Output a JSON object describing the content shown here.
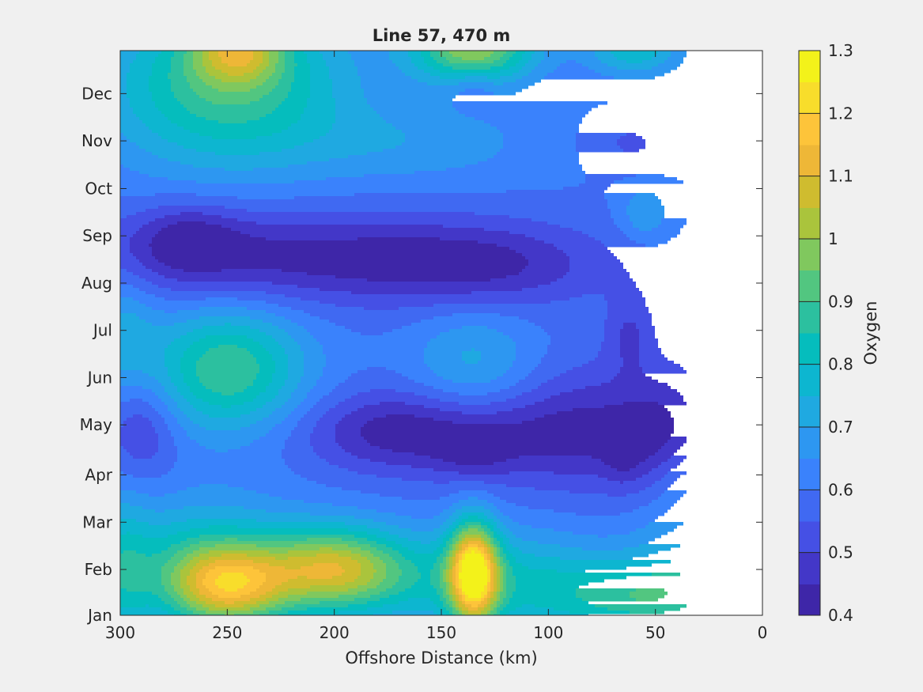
{
  "chart_data": {
    "type": "heatmap",
    "subtype": "filled-contour",
    "title": "Line 57, 470 m",
    "xlabel": "Offshore Distance (km)",
    "ylabel": "",
    "x_reversed": true,
    "xlim": [
      0,
      300
    ],
    "xticks": [
      300,
      250,
      200,
      150,
      100,
      50,
      0
    ],
    "ylim": [
      0,
      11.95
    ],
    "yticks": [
      {
        "value": 0,
        "label": "Jan"
      },
      {
        "value": 0.97,
        "label": "Feb"
      },
      {
        "value": 1.97,
        "label": "Mar"
      },
      {
        "value": 2.97,
        "label": "Apr"
      },
      {
        "value": 4.03,
        "label": "May"
      },
      {
        "value": 5.03,
        "label": "Jun"
      },
      {
        "value": 6.03,
        "label": "Jul"
      },
      {
        "value": 7.03,
        "label": "Aug"
      },
      {
        "value": 8.03,
        "label": "Sep"
      },
      {
        "value": 9.03,
        "label": "Oct"
      },
      {
        "value": 10.04,
        "label": "Nov"
      },
      {
        "value": 11.04,
        "label": "Dec"
      }
    ],
    "data_extent_x": [
      35,
      300
    ],
    "colorbar": {
      "label": "Oxygen",
      "min": 0.4,
      "max": 1.3,
      "levels": [
        0.4,
        0.45,
        0.5,
        0.55,
        0.6,
        0.65,
        0.7,
        0.75,
        0.8,
        0.85,
        0.9,
        0.95,
        1.0,
        1.05,
        1.1,
        1.15,
        1.2,
        1.25,
        1.3
      ],
      "ticks": [
        {
          "value": 0.4,
          "label": "0.4"
        },
        {
          "value": 0.5,
          "label": "0.5"
        },
        {
          "value": 0.6,
          "label": "0.6"
        },
        {
          "value": 0.7,
          "label": "0.7"
        },
        {
          "value": 0.8,
          "label": "0.8"
        },
        {
          "value": 0.9,
          "label": "0.9"
        },
        {
          "value": 1.0,
          "label": "1"
        },
        {
          "value": 1.1,
          "label": "1.1"
        },
        {
          "value": 1.2,
          "label": "1.2"
        },
        {
          "value": 1.3,
          "label": "1.3"
        }
      ],
      "colors": [
        "#3e26a8",
        "#4337c8",
        "#4550e5",
        "#4069f2",
        "#3a82fc",
        "#2d97f1",
        "#1fa9e1",
        "#0db6d0",
        "#05bdbd",
        "#2cc09f",
        "#52c680",
        "#80c85e",
        "#aac43c",
        "#cfbc2f",
        "#eeb737",
        "#fdc43a",
        "#f8dd2b",
        "#f3f21a"
      ]
    },
    "field_model": {
      "base": 0.6,
      "features": [
        {
          "x": 250,
          "y": 0.6,
          "sx": 20,
          "sy": 0.6,
          "a": 0.42
        },
        {
          "x": 262,
          "y": 1.2,
          "sx": 32,
          "sy": 0.9,
          "a": 0.2
        },
        {
          "x": 200,
          "y": 1.0,
          "sx": 22,
          "sy": 0.6,
          "a": 0.35
        },
        {
          "x": 172,
          "y": 0.8,
          "sx": 42,
          "sy": 0.7,
          "a": 0.15
        },
        {
          "x": 135,
          "y": 0.9,
          "sx": 8,
          "sy": 0.75,
          "a": 0.6
        },
        {
          "x": 110,
          "y": 0.6,
          "sx": 30,
          "sy": 0.8,
          "a": 0.15
        },
        {
          "x": 60,
          "y": 0.4,
          "sx": 25,
          "sy": 0.55,
          "a": 0.22
        },
        {
          "x": 30,
          "y": 1.0,
          "sx": 20,
          "sy": 1.2,
          "a": 0.15
        },
        {
          "x": 300,
          "y": 0.8,
          "sx": 10,
          "sy": 1.2,
          "a": 0.15
        },
        {
          "x": 250,
          "y": 5.2,
          "sx": 25,
          "sy": 0.9,
          "a": 0.3
        },
        {
          "x": 135,
          "y": 5.3,
          "sx": 20,
          "sy": 0.8,
          "a": 0.12
        },
        {
          "x": 300,
          "y": 6.0,
          "sx": 12,
          "sy": 1.0,
          "a": 0.12
        },
        {
          "x": 250,
          "y": 11.2,
          "sx": 40,
          "sy": 1.2,
          "a": 0.3
        },
        {
          "x": 245,
          "y": 12.0,
          "sx": 15,
          "sy": 0.5,
          "a": 0.3
        },
        {
          "x": 135,
          "y": 12.0,
          "sx": 20,
          "sy": 0.5,
          "a": 0.4
        },
        {
          "x": 60,
          "y": 12.0,
          "sx": 15,
          "sy": 0.4,
          "a": 0.2
        },
        {
          "x": 160,
          "y": 10.0,
          "sx": 40,
          "sy": 0.6,
          "a": 0.08
        },
        {
          "x": 55,
          "y": 8.5,
          "sx": 8,
          "sy": 0.4,
          "a": 0.1
        },
        {
          "x": 135,
          "y": 11.2,
          "sx": 7,
          "sy": 0.3,
          "a": -0.06
        },
        {
          "x": 62,
          "y": 10.0,
          "sx": 15,
          "sy": 0.4,
          "a": -0.06
        },
        {
          "x": 230,
          "y": 7.6,
          "sx": 70,
          "sy": 0.7,
          "a": -0.17
        },
        {
          "x": 268,
          "y": 8.0,
          "sx": 16,
          "sy": 0.5,
          "a": -0.1
        },
        {
          "x": 130,
          "y": 7.4,
          "sx": 40,
          "sy": 0.6,
          "a": -0.13
        },
        {
          "x": 175,
          "y": 3.9,
          "sx": 30,
          "sy": 0.6,
          "a": -0.15
        },
        {
          "x": 120,
          "y": 3.8,
          "sx": 35,
          "sy": 0.7,
          "a": -0.12
        },
        {
          "x": 135,
          "y": 3.4,
          "sx": 12,
          "sy": 0.35,
          "a": -0.06
        },
        {
          "x": 70,
          "y": 4.0,
          "sx": 30,
          "sy": 1.0,
          "a": -0.12
        },
        {
          "x": 65,
          "y": 3.4,
          "sx": 7,
          "sy": 0.5,
          "a": -0.06
        },
        {
          "x": 290,
          "y": 4.0,
          "sx": 12,
          "sy": 0.8,
          "a": -0.12
        },
        {
          "x": 62,
          "y": 6.0,
          "sx": 8,
          "sy": 0.6,
          "a": -0.09
        },
        {
          "x": 45,
          "y": 3.8,
          "sx": 12,
          "sy": 0.9,
          "a": -0.08
        },
        {
          "x": 35,
          "y": 2.9,
          "sx": 10,
          "sy": 0.5,
          "a": 0.05
        }
      ]
    }
  }
}
